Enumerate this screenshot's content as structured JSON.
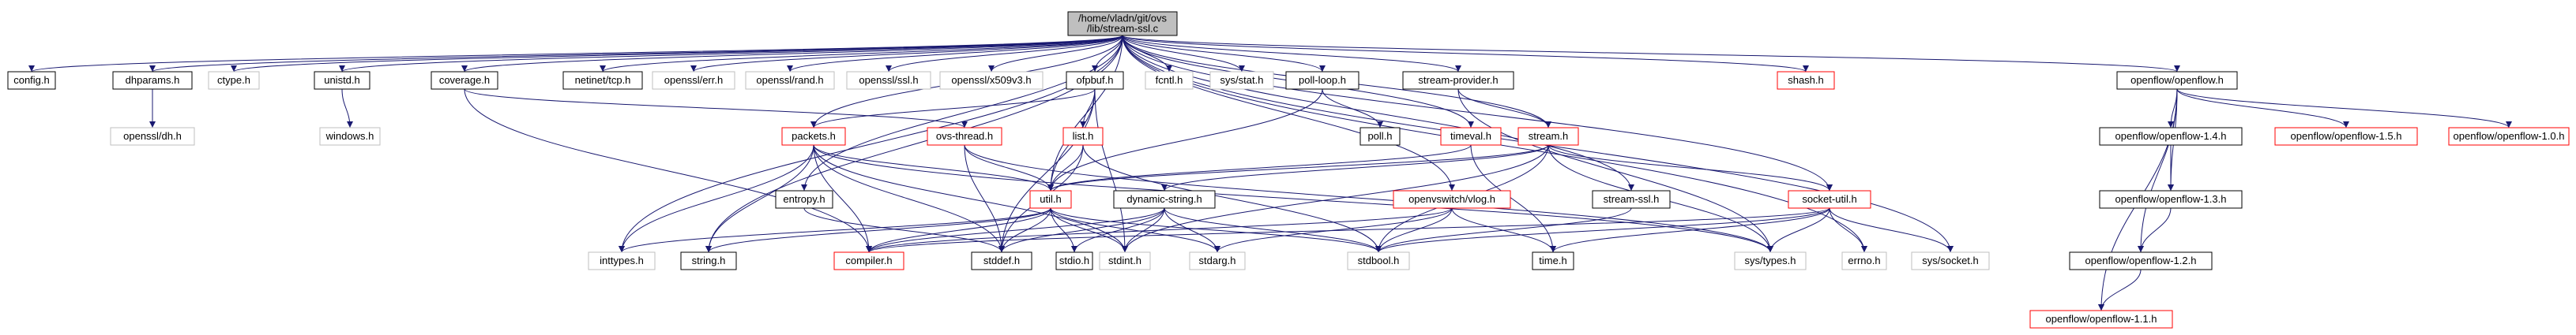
{
  "diagram": {
    "colors": {
      "edge": "#191970",
      "black_border": "#000000",
      "red_border": "#ff0000",
      "gray_border": "#bfbfbf",
      "root_fill": "#bfbfbf",
      "node_fill": "#ffffff",
      "text": "#000000"
    },
    "nodes": [
      {
        "id": "root",
        "lines": [
          "/home/vladn/git/ovs",
          "/lib/stream-ssl.c"
        ],
        "style": "root"
      },
      {
        "id": "config",
        "lines": [
          "config.h"
        ],
        "style": "black"
      },
      {
        "id": "dhparams",
        "lines": [
          "dhparams.h"
        ],
        "style": "black"
      },
      {
        "id": "ctype",
        "lines": [
          "ctype.h"
        ],
        "style": "gray"
      },
      {
        "id": "unistd",
        "lines": [
          "unistd.h"
        ],
        "style": "black"
      },
      {
        "id": "coverage",
        "lines": [
          "coverage.h"
        ],
        "style": "black"
      },
      {
        "id": "netinet_tcp",
        "lines": [
          "netinet/tcp.h"
        ],
        "style": "black"
      },
      {
        "id": "openssl_err",
        "lines": [
          "openssl/err.h"
        ],
        "style": "gray"
      },
      {
        "id": "openssl_rand",
        "lines": [
          "openssl/rand.h"
        ],
        "style": "gray"
      },
      {
        "id": "openssl_ssl",
        "lines": [
          "openssl/ssl.h"
        ],
        "style": "gray"
      },
      {
        "id": "openssl_x509",
        "lines": [
          "openssl/x509v3.h"
        ],
        "style": "gray"
      },
      {
        "id": "ofpbuf",
        "lines": [
          "ofpbuf.h"
        ],
        "style": "black"
      },
      {
        "id": "fcntl",
        "lines": [
          "fcntl.h"
        ],
        "style": "gray"
      },
      {
        "id": "sys_stat",
        "lines": [
          "sys/stat.h"
        ],
        "style": "gray"
      },
      {
        "id": "poll_loop",
        "lines": [
          "poll-loop.h"
        ],
        "style": "black"
      },
      {
        "id": "stream_provider",
        "lines": [
          "stream-provider.h"
        ],
        "style": "black"
      },
      {
        "id": "shash",
        "lines": [
          "shash.h"
        ],
        "style": "red"
      },
      {
        "id": "openflow",
        "lines": [
          "openflow/openflow.h"
        ],
        "style": "black"
      },
      {
        "id": "openssl_dh",
        "lines": [
          "openssl/dh.h"
        ],
        "style": "gray"
      },
      {
        "id": "windows",
        "lines": [
          "windows.h"
        ],
        "style": "gray"
      },
      {
        "id": "list",
        "lines": [
          "list.h"
        ],
        "style": "red"
      },
      {
        "id": "poll",
        "lines": [
          "poll.h"
        ],
        "style": "black"
      },
      {
        "id": "packets",
        "lines": [
          "packets.h"
        ],
        "style": "red"
      },
      {
        "id": "ovs_thread",
        "lines": [
          "ovs-thread.h"
        ],
        "style": "red"
      },
      {
        "id": "timeval",
        "lines": [
          "timeval.h"
        ],
        "style": "red"
      },
      {
        "id": "stream",
        "lines": [
          "stream.h"
        ],
        "style": "red"
      },
      {
        "id": "of14",
        "lines": [
          "openflow/openflow-1.4.h"
        ],
        "style": "black"
      },
      {
        "id": "of15",
        "lines": [
          "openflow/openflow-1.5.h"
        ],
        "style": "red"
      },
      {
        "id": "of10",
        "lines": [
          "openflow/openflow-1.0.h"
        ],
        "style": "red"
      },
      {
        "id": "entropy",
        "lines": [
          "entropy.h"
        ],
        "style": "black"
      },
      {
        "id": "util",
        "lines": [
          "util.h"
        ],
        "style": "red"
      },
      {
        "id": "dynamic_string",
        "lines": [
          "dynamic-string.h"
        ],
        "style": "black"
      },
      {
        "id": "vlog",
        "lines": [
          "openvswitch/vlog.h"
        ],
        "style": "red"
      },
      {
        "id": "stream_ssl_h",
        "lines": [
          "stream-ssl.h"
        ],
        "style": "black"
      },
      {
        "id": "socket_util",
        "lines": [
          "socket-util.h"
        ],
        "style": "red"
      },
      {
        "id": "of13",
        "lines": [
          "openflow/openflow-1.3.h"
        ],
        "style": "black"
      },
      {
        "id": "inttypes",
        "lines": [
          "inttypes.h"
        ],
        "style": "gray"
      },
      {
        "id": "string",
        "lines": [
          "string.h"
        ],
        "style": "black"
      },
      {
        "id": "compiler",
        "lines": [
          "compiler.h"
        ],
        "style": "red"
      },
      {
        "id": "stddef",
        "lines": [
          "stddef.h"
        ],
        "style": "black"
      },
      {
        "id": "stdio",
        "lines": [
          "stdio.h"
        ],
        "style": "black"
      },
      {
        "id": "stdint",
        "lines": [
          "stdint.h"
        ],
        "style": "gray"
      },
      {
        "id": "stdarg",
        "lines": [
          "stdarg.h"
        ],
        "style": "gray"
      },
      {
        "id": "stdbool",
        "lines": [
          "stdbool.h"
        ],
        "style": "gray"
      },
      {
        "id": "time",
        "lines": [
          "time.h"
        ],
        "style": "black"
      },
      {
        "id": "sys_types",
        "lines": [
          "sys/types.h"
        ],
        "style": "gray"
      },
      {
        "id": "errno",
        "lines": [
          "errno.h"
        ],
        "style": "gray"
      },
      {
        "id": "sys_socket",
        "lines": [
          "sys/socket.h"
        ],
        "style": "gray"
      },
      {
        "id": "of12",
        "lines": [
          "openflow/openflow-1.2.h"
        ],
        "style": "black"
      },
      {
        "id": "of11",
        "lines": [
          "openflow/openflow-1.1.h"
        ],
        "style": "red"
      }
    ],
    "edges": [
      [
        "root",
        "config"
      ],
      [
        "root",
        "dhparams"
      ],
      [
        "root",
        "ctype"
      ],
      [
        "root",
        "unistd"
      ],
      [
        "root",
        "coverage"
      ],
      [
        "root",
        "netinet_tcp"
      ],
      [
        "root",
        "openssl_err"
      ],
      [
        "root",
        "openssl_rand"
      ],
      [
        "root",
        "openssl_ssl"
      ],
      [
        "root",
        "openssl_x509"
      ],
      [
        "root",
        "ofpbuf"
      ],
      [
        "root",
        "fcntl"
      ],
      [
        "root",
        "sys_stat"
      ],
      [
        "root",
        "poll_loop"
      ],
      [
        "root",
        "stream_provider"
      ],
      [
        "root",
        "shash"
      ],
      [
        "root",
        "openflow"
      ],
      [
        "root",
        "packets"
      ],
      [
        "root",
        "timeval"
      ],
      [
        "root",
        "stream"
      ],
      [
        "root",
        "entropy"
      ],
      [
        "root",
        "util"
      ],
      [
        "root",
        "vlog"
      ],
      [
        "root",
        "stream_ssl_h"
      ],
      [
        "root",
        "socket_util"
      ],
      [
        "root",
        "inttypes"
      ],
      [
        "root",
        "string"
      ],
      [
        "root",
        "errno"
      ],
      [
        "root",
        "sys_socket"
      ],
      [
        "dhparams",
        "openssl_dh"
      ],
      [
        "unistd",
        "windows"
      ],
      [
        "coverage",
        "ovs_thread"
      ],
      [
        "coverage",
        "compiler"
      ],
      [
        "ofpbuf",
        "list"
      ],
      [
        "ofpbuf",
        "packets"
      ],
      [
        "ofpbuf",
        "util"
      ],
      [
        "ofpbuf",
        "stddef"
      ],
      [
        "ofpbuf",
        "stdint"
      ],
      [
        "poll_loop",
        "poll"
      ],
      [
        "poll_loop",
        "util"
      ],
      [
        "stream_provider",
        "stream"
      ],
      [
        "stream_provider",
        "sys_types"
      ],
      [
        "openflow",
        "of14"
      ],
      [
        "openflow",
        "of15"
      ],
      [
        "openflow",
        "of10"
      ],
      [
        "openflow",
        "of13"
      ],
      [
        "openflow",
        "of12"
      ],
      [
        "openflow",
        "of11"
      ],
      [
        "list",
        "util"
      ],
      [
        "list",
        "stddef"
      ],
      [
        "list",
        "stdbool"
      ],
      [
        "packets",
        "inttypes"
      ],
      [
        "packets",
        "string"
      ],
      [
        "packets",
        "compiler"
      ],
      [
        "packets",
        "util"
      ],
      [
        "packets",
        "stddef"
      ],
      [
        "packets",
        "stdint"
      ],
      [
        "packets",
        "sys_types"
      ],
      [
        "ovs_thread",
        "util"
      ],
      [
        "ovs_thread",
        "stddef"
      ],
      [
        "ovs_thread",
        "sys_types"
      ],
      [
        "timeval",
        "util"
      ],
      [
        "timeval",
        "time"
      ],
      [
        "stream",
        "util"
      ],
      [
        "stream",
        "dynamic_string"
      ],
      [
        "stream",
        "socket_util"
      ],
      [
        "stream",
        "stdbool"
      ],
      [
        "stream",
        "stdint"
      ],
      [
        "stream",
        "sys_types"
      ],
      [
        "of14",
        "of13"
      ],
      [
        "of13",
        "of12"
      ],
      [
        "of12",
        "of11"
      ],
      [
        "entropy",
        "stddef"
      ],
      [
        "util",
        "inttypes"
      ],
      [
        "util",
        "string"
      ],
      [
        "util",
        "compiler"
      ],
      [
        "util",
        "stddef"
      ],
      [
        "util",
        "stdio"
      ],
      [
        "util",
        "stdint"
      ],
      [
        "util",
        "stdarg"
      ],
      [
        "util",
        "stdbool"
      ],
      [
        "dynamic_string",
        "compiler"
      ],
      [
        "dynamic_string",
        "stddef"
      ],
      [
        "dynamic_string",
        "stdio"
      ],
      [
        "dynamic_string",
        "stdint"
      ],
      [
        "dynamic_string",
        "stdarg"
      ],
      [
        "dynamic_string",
        "stdbool"
      ],
      [
        "vlog",
        "compiler"
      ],
      [
        "vlog",
        "stdarg"
      ],
      [
        "vlog",
        "stdbool"
      ],
      [
        "vlog",
        "time"
      ],
      [
        "stream_ssl_h",
        "stdbool"
      ],
      [
        "socket_util",
        "compiler"
      ],
      [
        "socket_util",
        "stdbool"
      ],
      [
        "socket_util",
        "time"
      ],
      [
        "socket_util",
        "sys_types"
      ],
      [
        "socket_util",
        "errno"
      ],
      [
        "socket_util",
        "sys_socket"
      ]
    ]
  }
}
